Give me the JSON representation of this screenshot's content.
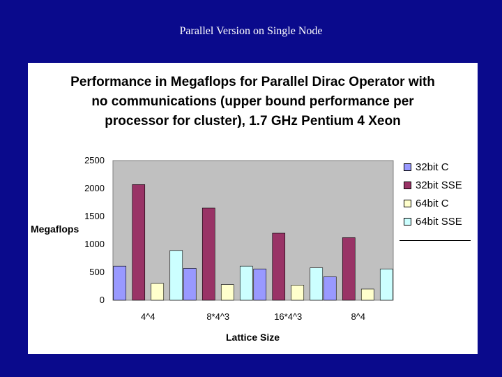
{
  "slide": {
    "title": "Parallel Version on Single Node"
  },
  "chart_data": {
    "type": "bar",
    "title": "Performance in Megaflops for Parallel Dirac Operator with\nno communications (upper bound performance per\nprocessor for  cluster), 1.7 GHz Pentium 4 Xeon",
    "xlabel": "Lattice Size",
    "ylabel": "Megaflops",
    "categories": [
      "4^4",
      "8*4^3",
      "16*4^3",
      "8^4"
    ],
    "ylim": [
      0,
      2500
    ],
    "yticks": [
      0,
      500,
      1000,
      1500,
      2000,
      2500
    ],
    "grid": false,
    "legend_position": "right",
    "series": [
      {
        "name": "32bit C",
        "values": [
          610,
          570,
          560,
          420
        ],
        "color": "#9999ff"
      },
      {
        "name": "32bit SSE",
        "values": [
          2070,
          1650,
          1200,
          1120
        ],
        "color": "#993366"
      },
      {
        "name": "64bit C",
        "values": [
          300,
          280,
          270,
          200
        ],
        "color": "#ffffcc"
      },
      {
        "name": "64bit SSE",
        "values": [
          890,
          610,
          580,
          560
        ],
        "color": "#ccffff"
      }
    ],
    "plot_area_color": "#c0c0c0"
  }
}
